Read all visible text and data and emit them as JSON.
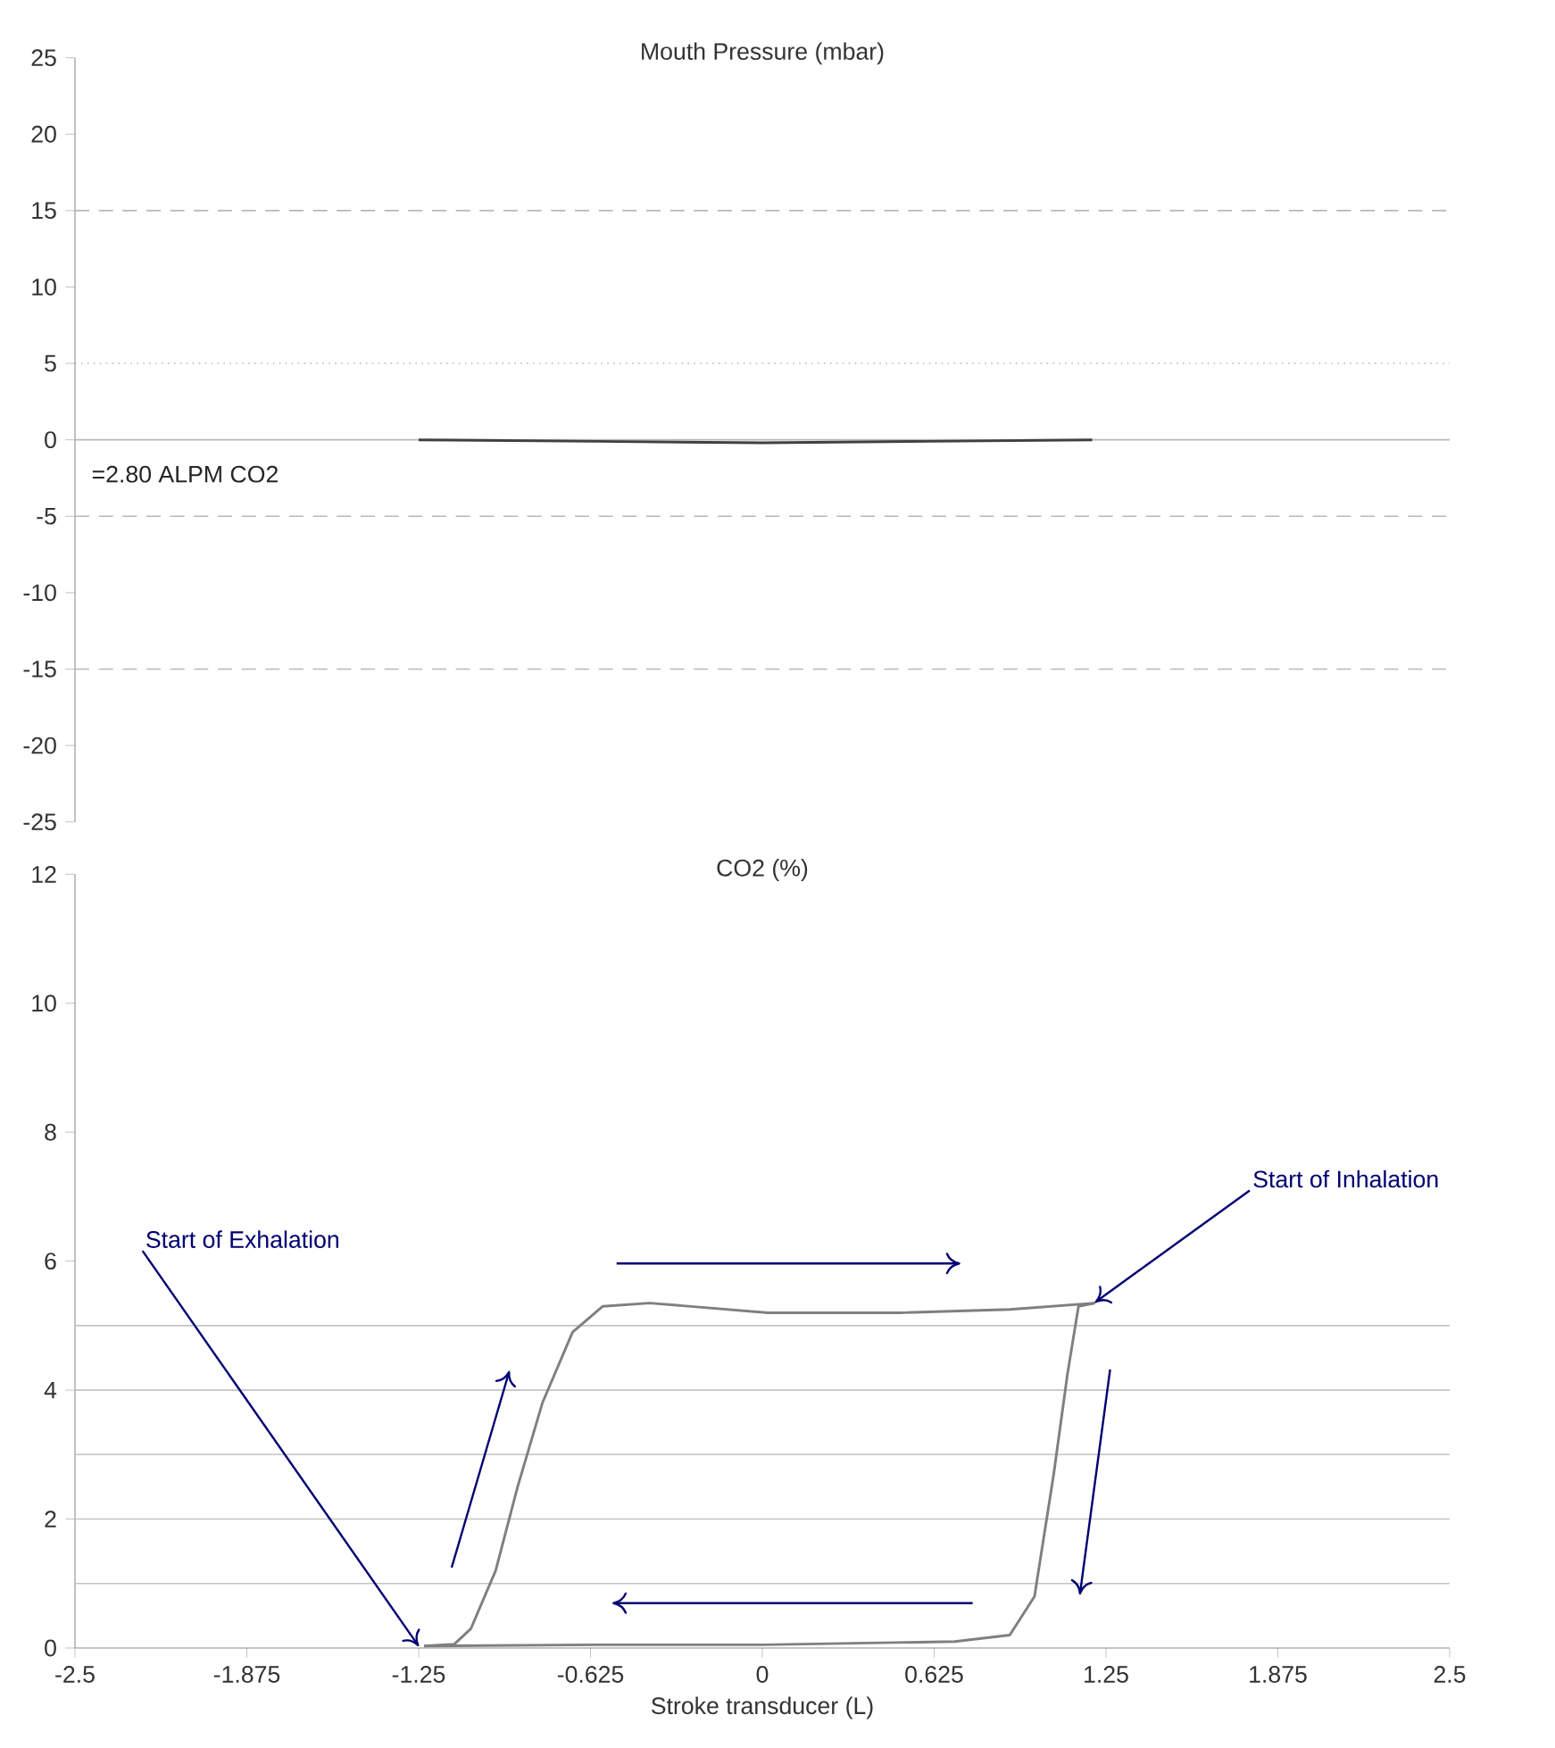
{
  "chart_data": [
    {
      "type": "line",
      "title": "Mouth Pressure (mbar)",
      "x": [
        -1.25,
        -0.6,
        0,
        0.6,
        1.2
      ],
      "values": [
        0,
        -0.1,
        -0.2,
        -0.1,
        0
      ],
      "color": "#404040",
      "xlim": [
        -2.5,
        2.5
      ],
      "ylim": [
        -25,
        25
      ],
      "yticks": [
        -25,
        -20,
        -15,
        -10,
        -5,
        0,
        5,
        10,
        15,
        20,
        25
      ],
      "tick_labels": "y",
      "ref_lines": [
        {
          "axis": "y",
          "value": 15,
          "line_style": "dashed",
          "color": "#b8b8b8"
        },
        {
          "axis": "y",
          "value": 5,
          "line_style": "dotted",
          "color": "#b8b8b8"
        },
        {
          "axis": "y",
          "value": 0,
          "line_style": "solid",
          "color": "#b8b8b8"
        },
        {
          "axis": "y",
          "value": -5,
          "line_style": "dashed",
          "color": "#b8b8b8"
        },
        {
          "axis": "y",
          "value": -15,
          "line_style": "dashed",
          "color": "#b8b8b8"
        }
      ],
      "annotations": [
        "=2.80 ALPM CO2"
      ]
    },
    {
      "type": "line",
      "title": "CO2 (%)",
      "xlabel": "Stroke transducer (L)",
      "series": [
        {
          "color": "#7f7f7f",
          "x": [
            -1.23,
            -1.12,
            -1.06,
            -0.97,
            -0.89,
            -0.8,
            -0.69,
            -0.58,
            -0.41,
            0.02,
            0.5,
            0.9,
            1.21
          ],
          "values": [
            0.03,
            0.06,
            0.3,
            1.2,
            2.5,
            3.8,
            4.9,
            5.3,
            5.35,
            5.2,
            5.2,
            5.25,
            5.35
          ]
        },
        {
          "color": "#7f7f7f",
          "x": [
            1.21,
            1.15,
            1.11,
            1.06,
            0.99,
            0.9,
            0.7,
            0,
            -0.6,
            -1.23
          ],
          "values": [
            5.35,
            5.3,
            4.25,
            2.7,
            0.8,
            0.2,
            0.1,
            0.05,
            0.05,
            0.03
          ]
        }
      ],
      "xlim": [
        -2.5,
        2.5
      ],
      "ylim": [
        0,
        12
      ],
      "xticks": [
        -2.5,
        -1.875,
        -1.25,
        -0.625,
        0,
        0.625,
        1.25,
        1.875,
        2.5
      ],
      "yticks": [
        0,
        2,
        4,
        6,
        8,
        10,
        12
      ],
      "ref_lines": [
        {
          "axis": "y",
          "value": 1,
          "line_style": "solid",
          "color": "#c4c4c4"
        },
        {
          "axis": "y",
          "value": 2,
          "line_style": "solid",
          "color": "#c4c4c4"
        },
        {
          "axis": "y",
          "value": 3,
          "line_style": "solid",
          "color": "#c4c4c4"
        },
        {
          "axis": "y",
          "value": 4,
          "line_style": "solid",
          "color": "#c4c4c4"
        },
        {
          "axis": "y",
          "value": 5,
          "line_style": "solid",
          "color": "#c4c4c4"
        }
      ],
      "annotations": [
        {
          "text": "Start of Exhalation",
          "x": -1.25,
          "y": 0.03
        },
        {
          "text": "Start of Inhalation",
          "x": 1.21,
          "y": 5.36
        }
      ]
    }
  ]
}
